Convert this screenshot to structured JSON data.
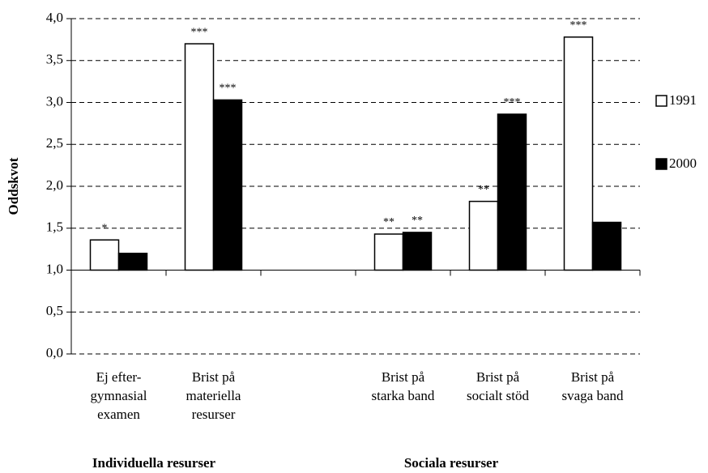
{
  "chart_data": {
    "type": "bar",
    "y_label": "Oddskvot",
    "categories": [
      [
        "Ej efter-",
        "gymnasial",
        "examen"
      ],
      [
        "Brist på",
        "materiella",
        "resurser"
      ],
      null,
      [
        "Brist på",
        "starka band"
      ],
      [
        "Brist på",
        "socialt stöd"
      ],
      [
        "Brist på",
        "svaga band"
      ]
    ],
    "groups": [
      {
        "label": "Individuella resurser"
      },
      {
        "label": "Sociala resurser"
      }
    ],
    "series": [
      {
        "name": "1991",
        "color": "#ffffff",
        "values": [
          1.36,
          3.7,
          null,
          1.43,
          1.82,
          3.78
        ],
        "significance": [
          "*",
          "***",
          null,
          "**",
          "**",
          "***"
        ]
      },
      {
        "name": "2000",
        "color": "#000000",
        "values": [
          1.2,
          3.03,
          null,
          1.45,
          2.86,
          1.57
        ],
        "significance": [
          null,
          "***",
          null,
          "**",
          "***",
          null
        ]
      }
    ],
    "bar_base": 1.0,
    "ylim": [
      0,
      4
    ],
    "yticks": [
      {
        "value": 0,
        "label": "0,0"
      },
      {
        "value": 0.5,
        "label": "0,5"
      },
      {
        "value": 1,
        "label": "1,0"
      },
      {
        "value": 1.5,
        "label": "1,5"
      },
      {
        "value": 2,
        "label": "2,0"
      },
      {
        "value": 2.5,
        "label": "2,5"
      },
      {
        "value": 3,
        "label": "3,0"
      },
      {
        "value": 3.5,
        "label": "3,5"
      },
      {
        "value": 4,
        "label": "4,0"
      }
    ],
    "grid": true,
    "legend": "right"
  }
}
